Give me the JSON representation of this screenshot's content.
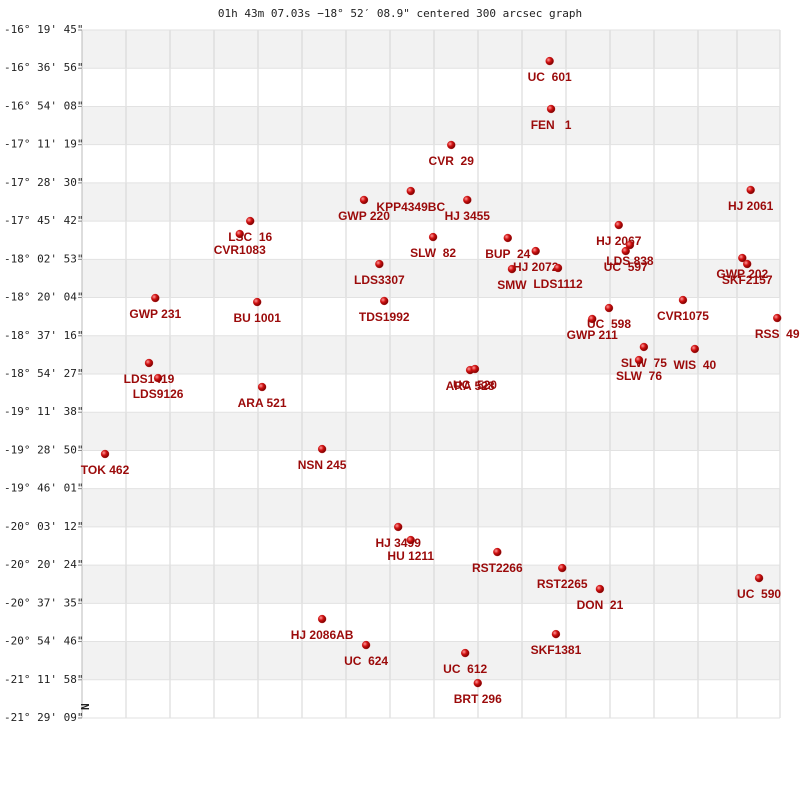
{
  "chart_data": {
    "type": "scatter",
    "title": "01h 43m 07.03s −18° 52′ 08.9\" centered 300 arcsec graph",
    "north_label": "N",
    "xlim": [
      0,
      100
    ],
    "ylim": [
      -21.4858,
      -16.3292
    ],
    "yticks": [
      {
        "value": -16.3292,
        "label": "-16° 19' 45\""
      },
      {
        "value": -16.6156,
        "label": "-16° 36' 56\""
      },
      {
        "value": -16.9022,
        "label": "-16° 54' 08\""
      },
      {
        "value": -17.1886,
        "label": "-17° 11' 19\""
      },
      {
        "value": -17.475,
        "label": "-17° 28' 30\""
      },
      {
        "value": -17.7617,
        "label": "-17° 45' 42\""
      },
      {
        "value": -18.0481,
        "label": "-18° 02' 53\""
      },
      {
        "value": -18.3344,
        "label": "-18° 20' 04\""
      },
      {
        "value": -18.6211,
        "label": "-18° 37' 16\""
      },
      {
        "value": -18.9075,
        "label": "-18° 54' 27\""
      },
      {
        "value": -19.1939,
        "label": "-19° 11' 38\""
      },
      {
        "value": -19.4806,
        "label": "-19° 28' 50\""
      },
      {
        "value": -19.7669,
        "label": "-19° 46' 01\""
      },
      {
        "value": -20.0533,
        "label": "-20° 03' 12\""
      },
      {
        "value": -20.34,
        "label": "-20° 20' 24\""
      },
      {
        "value": -20.6264,
        "label": "-20° 37' 35\""
      },
      {
        "value": -20.9128,
        "label": "-20° 54' 46\""
      },
      {
        "value": -21.1994,
        "label": "-21° 11' 58\""
      },
      {
        "value": -21.4858,
        "label": "-21° 29' 09\""
      }
    ],
    "color": "#cc1111",
    "labels": [
      "UC  601",
      "FEN   1",
      "CVR  29",
      "KPP4349BC",
      "GWP 220",
      "HJ 3455",
      "HJ 2061",
      "LSC  16",
      "CVR1083",
      "SLW  82",
      "BUP  24",
      "HJ 2067",
      "HJ 2072",
      "SMW",
      "LDS1112",
      "LDS3307",
      "LDS 838",
      "UC  597",
      "GWP 202",
      "SKF2157",
      "GWP 231",
      "BU 1001",
      "TDS1992",
      "CVR1075",
      "UC  598",
      "GWP 211",
      "RSS  49",
      "LDS1419",
      "LDS9126",
      "SLW  75",
      "SLW  76",
      "WIS  40",
      "ARA 528",
      "UC  520",
      "ARA 521",
      "TOK 462",
      "NSN 245",
      "HJ 3499",
      "HU 1211",
      "RST2266",
      "RST2265",
      "DON  21",
      "UC  590",
      "HJ 2086AB",
      "UC  624",
      "SKF1381",
      "UC  612",
      "BRT 296"
    ],
    "x": [
      67.0,
      67.2,
      52.9,
      47.1,
      40.4,
      55.2,
      95.8,
      24.1,
      22.6,
      50.3,
      61.0,
      76.9,
      65.0,
      61.6,
      68.2,
      42.6,
      78.5,
      77.9,
      94.6,
      95.3,
      10.5,
      25.1,
      43.3,
      86.1,
      75.5,
      73.1,
      99.6,
      9.6,
      10.9,
      80.5,
      79.8,
      87.8,
      55.6,
      56.3,
      25.8,
      3.3,
      34.4,
      45.3,
      47.1,
      59.5,
      68.8,
      74.2,
      97.0,
      34.4,
      40.7,
      67.9,
      54.9,
      56.7
    ],
    "values": [
      -16.562,
      -16.921,
      -17.191,
      -17.536,
      -17.603,
      -17.603,
      -17.528,
      -17.761,
      -17.858,
      -17.881,
      -17.888,
      -17.791,
      -17.986,
      -18.121,
      -18.113,
      -18.083,
      -17.941,
      -17.986,
      -18.038,
      -18.083,
      -18.338,
      -18.368,
      -18.36,
      -18.353,
      -18.413,
      -18.495,
      -18.488,
      -18.825,
      -18.938,
      -18.705,
      -18.803,
      -18.72,
      -18.878,
      -18.87,
      -19.005,
      -19.507,
      -19.47,
      -20.054,
      -20.152,
      -20.242,
      -20.362,
      -20.519,
      -20.437,
      -20.744,
      -20.939,
      -20.857,
      -20.999,
      -21.224
    ]
  }
}
